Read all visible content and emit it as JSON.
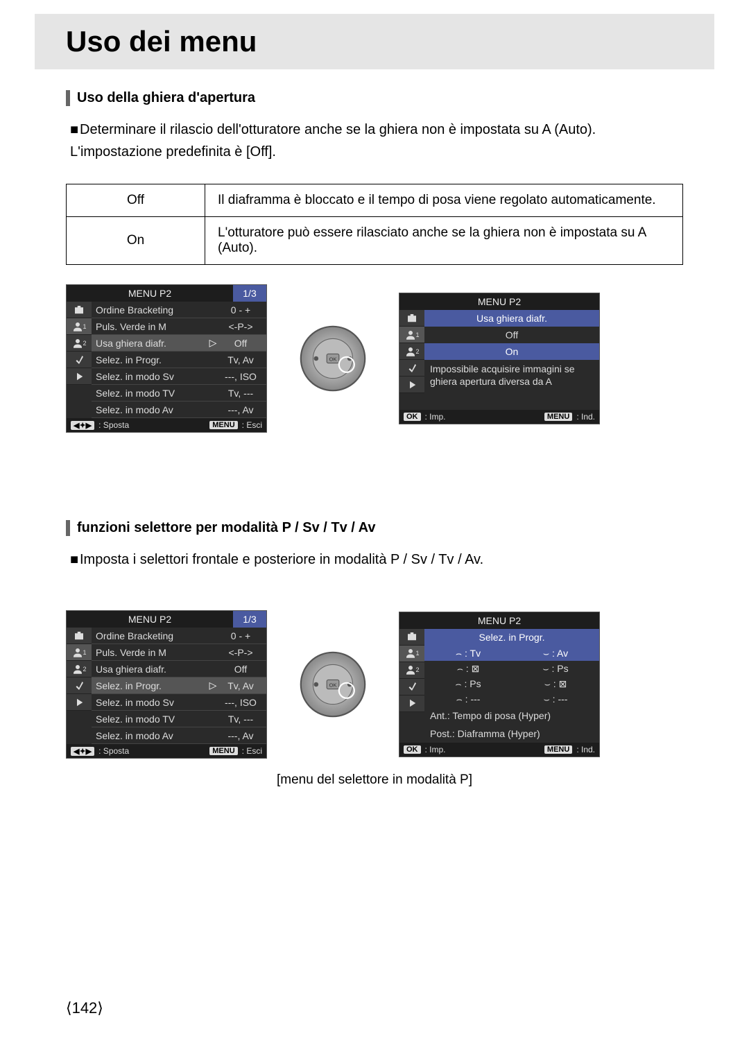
{
  "page": {
    "title": "Uso dei menu",
    "number": "⟨142⟩"
  },
  "s1": {
    "heading": "Uso della ghiera d'apertura",
    "p1": "Determinare il rilascio dell'otturatore anche se la ghiera non è impostata su A (Auto). L'impostazione predefinita è [Off].",
    "table": {
      "r1k": "Off",
      "r1v": "Il diaframma è bloccato e il tempo di posa viene regolato automaticamente.",
      "r2k": "On",
      "r2v": "L'otturatore può essere rilasciato anche se la ghiera non è impostata su A (Auto)."
    }
  },
  "m": {
    "p2": "MENU P2",
    "page": "1/3",
    "items": [
      {
        "l": "Ordine Bracketing",
        "v": "0 - +"
      },
      {
        "l": "Puls. Verde in M",
        "v": "<-P->"
      },
      {
        "l": "Usa ghiera diafr.",
        "v": "Off"
      },
      {
        "l": "Selez. in Progr.",
        "v": "Tv, Av"
      },
      {
        "l": "Selez. in modo Sv",
        "v": "---, ISO"
      },
      {
        "l": "Selez. in modo TV",
        "v": "Tv, ---"
      },
      {
        "l": "Selez. in modo Av",
        "v": "---, Av"
      }
    ],
    "f": {
      "sposta": ": Sposta",
      "esci": ": Esci",
      "menu": "MENU",
      "nav": "◀✦▶",
      "imp": ": Imp.",
      "ind": ": Ind.",
      "ok": "OK"
    }
  },
  "mA": {
    "highlight": 2
  },
  "mB": {
    "title": "Usa ghiera diafr.",
    "off": "Off",
    "on": "On",
    "info": "Impossibile acquisire immagini se ghiera apertura diversa da A"
  },
  "s2": {
    "heading": "funzioni selettore per modalità P / Sv / Tv / Av",
    "p1": "Imposta i selettori frontale e posteriore in modalità P / Sv / Tv / Av.",
    "caption": "[menu del selettore in modalità P]"
  },
  "mC": {
    "highlight": 3
  },
  "mD": {
    "title": "Selez. in Progr.",
    "rows": [
      {
        "a": "⌢ : Tv",
        "b": "⌣ : Av"
      },
      {
        "a": "⌢ : ⊠",
        "b": "⌣ : Ps"
      },
      {
        "a": "⌢ : Ps",
        "b": "⌣ : ⊠"
      },
      {
        "a": "⌢ : ---",
        "b": "⌣ : ---"
      }
    ],
    "ant": "Ant.: Tempo di posa (Hyper)",
    "post": "Post.: Diaframma (Hyper)"
  }
}
